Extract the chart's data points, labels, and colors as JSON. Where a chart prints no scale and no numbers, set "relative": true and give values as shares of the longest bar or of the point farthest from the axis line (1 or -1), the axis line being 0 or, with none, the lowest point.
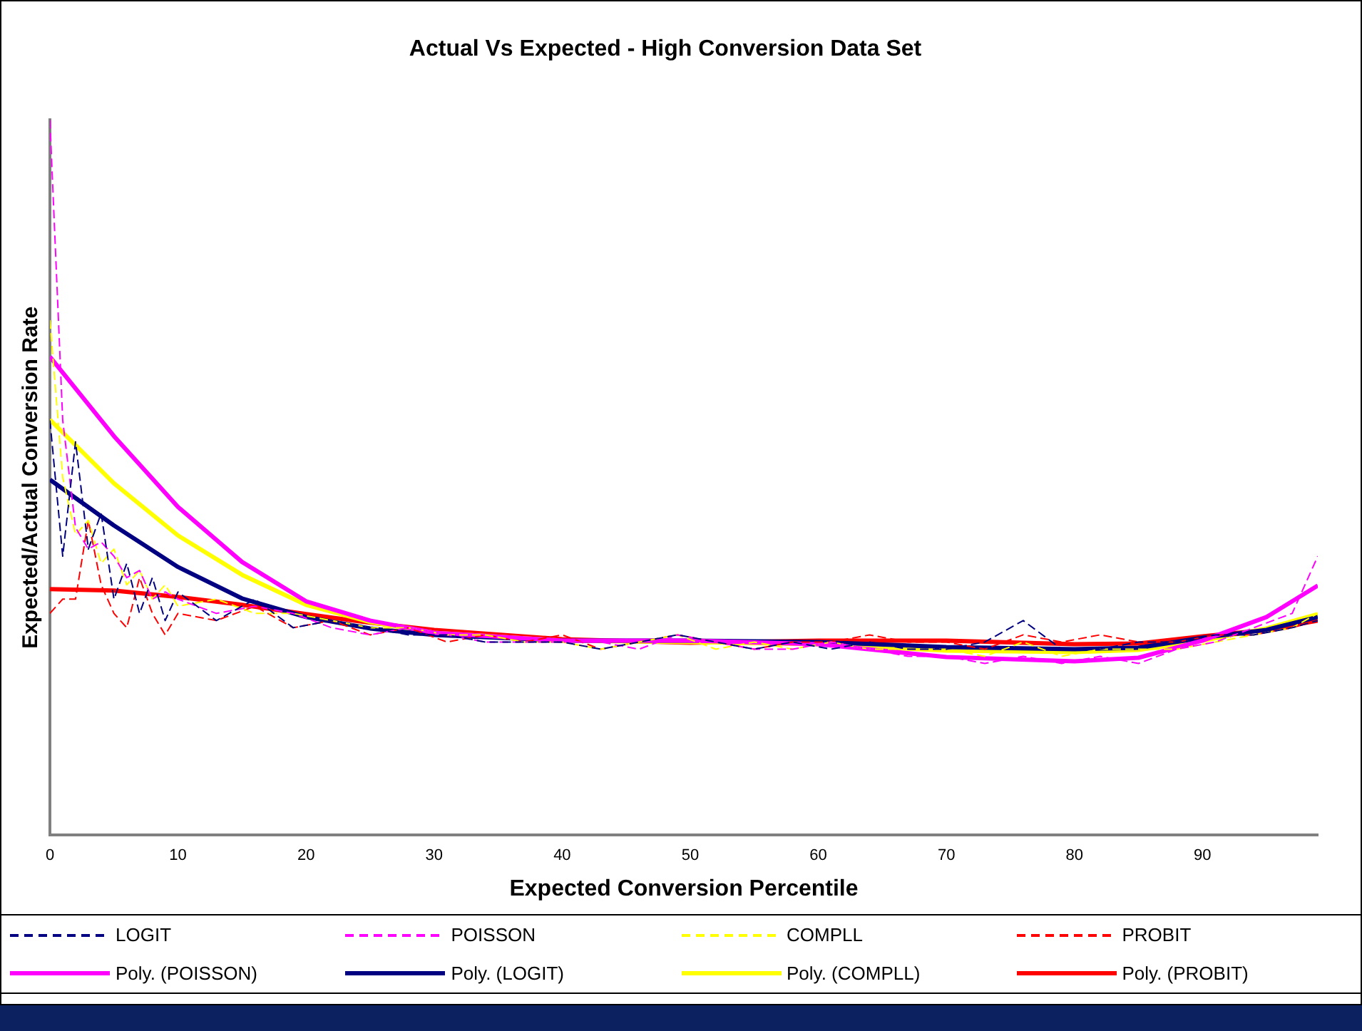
{
  "chart_data": {
    "type": "line",
    "title": "Actual Vs Expected - High Conversion Data Set",
    "xlabel": "Expected Conversion Percentile",
    "ylabel": "Expected/Actual Conversion Rate",
    "relative": true,
    "xlim": [
      0,
      99
    ],
    "xticks": [
      0,
      10,
      20,
      30,
      40,
      50,
      60,
      70,
      80,
      90
    ],
    "tick_labels": "x",
    "grid": false,
    "legend": "bottom",
    "marker": "none",
    "series": [
      {
        "name": "LOGIT",
        "color": "#000080",
        "line_style": "dashed",
        "x": [
          0,
          1,
          2,
          3,
          4,
          5,
          6,
          7,
          8,
          9,
          10,
          13,
          16,
          19,
          22,
          25,
          28,
          31,
          34,
          37,
          40,
          43,
          46,
          49,
          52,
          55,
          58,
          61,
          64,
          67,
          70,
          73,
          76,
          79,
          82,
          85,
          88,
          91,
          94,
          97,
          99
        ],
        "values": [
          0.58,
          0.39,
          0.55,
          0.4,
          0.45,
          0.33,
          0.38,
          0.31,
          0.36,
          0.3,
          0.34,
          0.3,
          0.33,
          0.29,
          0.3,
          0.29,
          0.28,
          0.28,
          0.27,
          0.27,
          0.27,
          0.26,
          0.27,
          0.28,
          0.27,
          0.26,
          0.27,
          0.26,
          0.27,
          0.26,
          0.26,
          0.27,
          0.3,
          0.26,
          0.26,
          0.27,
          0.27,
          0.28,
          0.28,
          0.29,
          0.3
        ]
      },
      {
        "name": "POISSON",
        "color": "#ff00ff",
        "line_style": "dashed",
        "x": [
          0,
          1,
          2,
          3,
          4,
          5,
          6,
          7,
          8,
          9,
          10,
          13,
          16,
          19,
          22,
          25,
          28,
          31,
          34,
          37,
          40,
          43,
          46,
          49,
          52,
          55,
          58,
          61,
          64,
          67,
          70,
          73,
          76,
          79,
          82,
          85,
          88,
          91,
          94,
          97,
          99
        ],
        "values": [
          1.0,
          0.58,
          0.43,
          0.4,
          0.41,
          0.39,
          0.36,
          0.37,
          0.33,
          0.34,
          0.33,
          0.31,
          0.32,
          0.31,
          0.29,
          0.28,
          0.29,
          0.28,
          0.27,
          0.27,
          0.27,
          0.27,
          0.26,
          0.28,
          0.27,
          0.26,
          0.26,
          0.27,
          0.26,
          0.25,
          0.25,
          0.24,
          0.25,
          0.24,
          0.25,
          0.24,
          0.26,
          0.27,
          0.29,
          0.31,
          0.39
        ]
      },
      {
        "name": "COMPLL",
        "color": "#ffff00",
        "line_style": "dashed",
        "x": [
          0,
          1,
          2,
          3,
          4,
          5,
          6,
          7,
          8,
          9,
          10,
          13,
          16,
          19,
          22,
          25,
          28,
          31,
          34,
          37,
          40,
          43,
          46,
          49,
          52,
          55,
          58,
          61,
          64,
          67,
          70,
          73,
          76,
          79,
          82,
          85,
          88,
          91,
          94,
          97,
          99
        ],
        "values": [
          0.72,
          0.5,
          0.42,
          0.44,
          0.38,
          0.4,
          0.35,
          0.37,
          0.33,
          0.35,
          0.32,
          0.33,
          0.31,
          0.31,
          0.3,
          0.29,
          0.29,
          0.28,
          0.28,
          0.27,
          0.27,
          0.26,
          0.27,
          0.28,
          0.26,
          0.27,
          0.26,
          0.27,
          0.26,
          0.26,
          0.26,
          0.25,
          0.27,
          0.25,
          0.26,
          0.26,
          0.26,
          0.27,
          0.28,
          0.29,
          0.31
        ]
      },
      {
        "name": "PROBIT",
        "color": "#ff0000",
        "line_style": "dashed",
        "x": [
          0,
          1,
          2,
          3,
          4,
          5,
          6,
          7,
          8,
          9,
          10,
          13,
          16,
          19,
          22,
          25,
          28,
          31,
          34,
          37,
          40,
          43,
          46,
          49,
          52,
          55,
          58,
          61,
          64,
          67,
          70,
          73,
          76,
          79,
          82,
          85,
          88,
          91,
          94,
          97,
          99
        ],
        "values": [
          0.31,
          0.33,
          0.33,
          0.44,
          0.35,
          0.31,
          0.29,
          0.36,
          0.31,
          0.28,
          0.31,
          0.3,
          0.32,
          0.29,
          0.3,
          0.28,
          0.29,
          0.27,
          0.28,
          0.27,
          0.28,
          0.26,
          0.27,
          0.28,
          0.27,
          0.26,
          0.27,
          0.27,
          0.28,
          0.27,
          0.27,
          0.26,
          0.28,
          0.27,
          0.28,
          0.27,
          0.27,
          0.28,
          0.28,
          0.29,
          0.3
        ]
      },
      {
        "name": "Poly. (POISSON)",
        "color": "#ff00ff",
        "line_style": "solid",
        "x": [
          0,
          5,
          10,
          15,
          20,
          25,
          30,
          40,
          50,
          60,
          70,
          80,
          85,
          90,
          95,
          99
        ],
        "values": [
          0.669,
          0.558,
          0.459,
          0.382,
          0.327,
          0.3,
          0.283,
          0.272,
          0.272,
          0.267,
          0.249,
          0.243,
          0.248,
          0.272,
          0.305,
          0.349
        ]
      },
      {
        "name": "Poly. (LOGIT)",
        "color": "#000080",
        "line_style": "solid",
        "x": [
          0,
          5,
          10,
          15,
          20,
          25,
          30,
          40,
          50,
          60,
          70,
          80,
          85,
          90,
          95,
          99
        ],
        "values": [
          0.497,
          0.433,
          0.375,
          0.331,
          0.305,
          0.289,
          0.28,
          0.272,
          0.272,
          0.27,
          0.263,
          0.26,
          0.262,
          0.276,
          0.287,
          0.305
        ]
      },
      {
        "name": "Poly. (COMPLL)",
        "color": "#ffff00",
        "line_style": "solid",
        "x": [
          0,
          5,
          10,
          15,
          20,
          25,
          30,
          40,
          50,
          60,
          70,
          80,
          85,
          90,
          95,
          99
        ],
        "values": [
          0.581,
          0.492,
          0.419,
          0.364,
          0.322,
          0.298,
          0.283,
          0.272,
          0.27,
          0.267,
          0.258,
          0.256,
          0.259,
          0.272,
          0.289,
          0.309
        ]
      },
      {
        "name": "Poly. (PROBIT)",
        "color": "#ff0000",
        "line_style": "solid",
        "x": [
          0,
          5,
          10,
          15,
          20,
          25,
          30,
          40,
          50,
          60,
          70,
          80,
          85,
          90,
          95,
          99
        ],
        "values": [
          0.344,
          0.342,
          0.333,
          0.322,
          0.309,
          0.297,
          0.287,
          0.274,
          0.269,
          0.272,
          0.272,
          0.267,
          0.268,
          0.278,
          0.287,
          0.3
        ]
      }
    ]
  }
}
